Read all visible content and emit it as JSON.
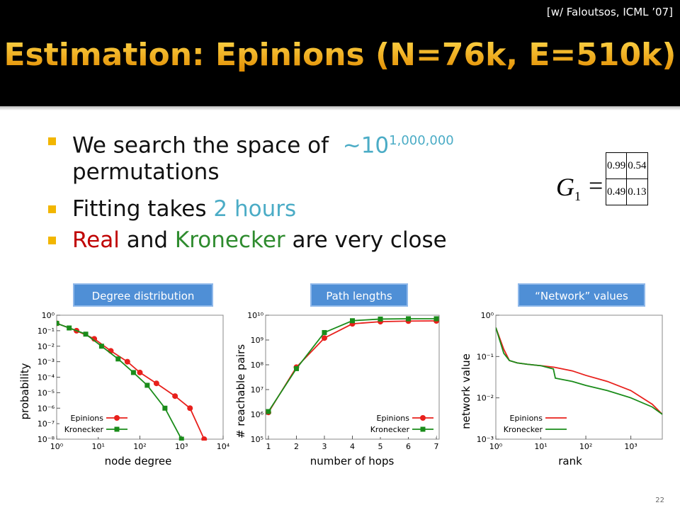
{
  "header": {
    "citation": "[w/ Faloutsos, ICML ’07]",
    "title": "Estimation: Epinions (N=76k, E=510k)"
  },
  "bullets": [
    {
      "text": "We search the space of",
      "highlight": "~10",
      "superscript": "1,000,000",
      "rest": "permutations"
    },
    {
      "text": "Fitting takes",
      "highlight": "2 hours"
    },
    {
      "real": "Real",
      "and": "and",
      "kronecker": "Kronecker",
      "rest": "are very close"
    }
  ],
  "matrix": {
    "name": "G",
    "subscript": "1",
    "equals": "=",
    "rows": [
      [
        0.99,
        0.54
      ],
      [
        0.49,
        0.13
      ]
    ]
  },
  "page_number": "22",
  "chart_data": [
    {
      "type": "line",
      "title": "Degree distribution",
      "x_label": "node degree",
      "y_label": "probability",
      "xscale": "log",
      "yscale": "log",
      "legend": "lower left",
      "xlim": [
        1,
        10000
      ],
      "ylim": [
        1e-08,
        1
      ],
      "xticks": [
        {
          "value": 1,
          "label": "10⁰"
        },
        {
          "value": 10,
          "label": "10¹"
        },
        {
          "value": 100,
          "label": "10²"
        },
        {
          "value": 1000,
          "label": "10³"
        },
        {
          "value": 10000,
          "label": "10⁴"
        }
      ],
      "yticks": [
        {
          "value": 1,
          "label": "10⁰"
        },
        {
          "value": 0.1,
          "label": "10⁻¹"
        },
        {
          "value": 0.01,
          "label": "10⁻²"
        },
        {
          "value": 0.001,
          "label": "10⁻³"
        },
        {
          "value": 0.0001,
          "label": "10⁻⁴"
        },
        {
          "value": 1e-05,
          "label": "10⁻⁵"
        },
        {
          "value": 1e-06,
          "label": "10⁻⁶"
        },
        {
          "value": 1e-07,
          "label": "10⁻⁷"
        },
        {
          "value": 1e-08,
          "label": "10⁻⁸"
        }
      ],
      "series": [
        {
          "name": "Epinions",
          "color": "#e8201c",
          "marker": "circle",
          "x": [
            1,
            3,
            8,
            20,
            50,
            100,
            250,
            700,
            1600,
            3500
          ],
          "values": [
            0.3,
            0.1,
            0.03,
            0.005,
            0.001,
            0.0002,
            4e-05,
            6e-06,
            1e-06,
            1e-08
          ]
        },
        {
          "name": "Kronecker",
          "color": "#1a8c1a",
          "marker": "square",
          "x": [
            1,
            2,
            5,
            12,
            30,
            70,
            150,
            400,
            1000
          ],
          "values": [
            0.3,
            0.15,
            0.06,
            0.01,
            0.0015,
            0.0002,
            3e-05,
            1e-06,
            1e-08
          ]
        }
      ]
    },
    {
      "type": "line",
      "title": "Path lengths",
      "x_label": "number of hops",
      "y_label": "# reachable pairs",
      "xscale": "linear",
      "yscale": "log",
      "legend": "lower right",
      "xlim": [
        0.9,
        7.1
      ],
      "ylim": [
        100000,
        10000000000
      ],
      "xticks": [
        1,
        2,
        3,
        4,
        5,
        6,
        7
      ],
      "yticks": [
        {
          "value": 100000,
          "label": "10⁵"
        },
        {
          "value": 1000000,
          "label": "10⁶"
        },
        {
          "value": 10000000,
          "label": "10⁷"
        },
        {
          "value": 100000000,
          "label": "10⁸"
        },
        {
          "value": 1000000000,
          "label": "10⁹"
        },
        {
          "value": 10000000000,
          "label": "10¹⁰"
        }
      ],
      "series": [
        {
          "name": "Epinions",
          "color": "#e8201c",
          "marker": "circle",
          "x": [
            1,
            2,
            3,
            4,
            5,
            6,
            7
          ],
          "values": [
            1200000,
            80000000,
            1200000000,
            4500000000,
            5500000000,
            5800000000,
            5900000000
          ]
        },
        {
          "name": "Kronecker",
          "color": "#1a8c1a",
          "marker": "square",
          "x": [
            1,
            2,
            3,
            4,
            5,
            6,
            7
          ],
          "values": [
            1300000,
            70000000,
            2000000000,
            6000000000,
            7000000000,
            7200000000,
            7200000000
          ]
        }
      ]
    },
    {
      "type": "line",
      "title": "“Network” values",
      "x_label": "rank",
      "y_label": "network value",
      "xscale": "log",
      "yscale": "log",
      "legend": "lower left",
      "xlim": [
        1,
        5000
      ],
      "ylim": [
        0.001,
        1
      ],
      "xticks": [
        {
          "value": 1,
          "label": "10⁰"
        },
        {
          "value": 10,
          "label": "10¹"
        },
        {
          "value": 100,
          "label": "10²"
        },
        {
          "value": 1000,
          "label": "10³"
        }
      ],
      "yticks": [
        {
          "value": 0.001,
          "label": "10⁻³"
        },
        {
          "value": 0.01,
          "label": "10⁻²"
        },
        {
          "value": 0.1,
          "label": "10⁻¹"
        },
        {
          "value": 1,
          "label": "10⁰"
        }
      ],
      "series": [
        {
          "name": "Epinions",
          "color": "#e8201c",
          "x": [
            1,
            1.5,
            2,
            3,
            5,
            10,
            20,
            50,
            100,
            300,
            1000,
            3000,
            5000
          ],
          "values": [
            0.5,
            0.15,
            0.08,
            0.07,
            0.065,
            0.06,
            0.055,
            0.045,
            0.035,
            0.025,
            0.015,
            0.007,
            0.004
          ]
        },
        {
          "name": "Kronecker",
          "color": "#1a8c1a",
          "x": [
            1,
            1.5,
            2,
            3,
            5,
            10,
            19,
            21,
            50,
            100,
            300,
            1000,
            3000,
            5000
          ],
          "values": [
            0.5,
            0.12,
            0.08,
            0.07,
            0.065,
            0.06,
            0.05,
            0.03,
            0.025,
            0.02,
            0.015,
            0.01,
            0.006,
            0.004
          ]
        }
      ]
    }
  ]
}
